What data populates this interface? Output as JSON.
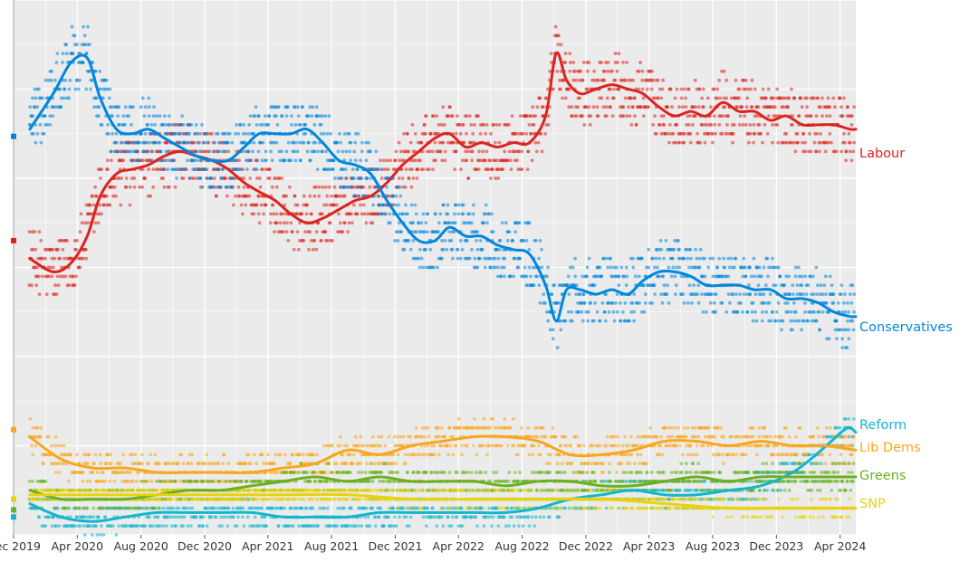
{
  "chart_data": {
    "type": "scatter",
    "title": "",
    "xlabel": "",
    "ylabel": "",
    "x_tick_labels": [
      "Dec 2019",
      "Apr 2020",
      "Aug 2020",
      "Dec 2020",
      "Apr 2021",
      "Aug 2021",
      "Dec 2021",
      "Apr 2022",
      "Aug 2022",
      "Dec 2022",
      "Apr 2023",
      "Aug 2023",
      "Dec 2023",
      "Apr 2024"
    ],
    "x_tick_dates": [
      "2019-12-01",
      "2020-04-01",
      "2020-08-01",
      "2020-12-01",
      "2021-04-01",
      "2021-08-01",
      "2021-12-01",
      "2022-04-01",
      "2022-08-01",
      "2022-12-01",
      "2023-04-01",
      "2023-08-01",
      "2023-12-01",
      "2024-04-01"
    ],
    "x_range": [
      "2019-12-01",
      "2024-05-01"
    ],
    "ylim": [
      0,
      60
    ],
    "grid": true,
    "election_result": {
      "date": "2019-12-12",
      "values": {
        "Conservatives": 44.7,
        "Labour": 33.0,
        "Lib Dems": 11.8,
        "Greens": 2.8,
        "Reform": 2.0,
        "SNP": 4.0
      }
    },
    "series": [
      {
        "name": "Labour",
        "color": "#DC241F",
        "spread": 3.5,
        "dates": [
          "2020-01-01",
          "2020-02-15",
          "2020-03-20",
          "2020-04-20",
          "2020-05-15",
          "2020-06-15",
          "2020-07-15",
          "2020-08-15",
          "2020-09-15",
          "2020-10-15",
          "2020-11-15",
          "2020-12-15",
          "2021-01-15",
          "2021-02-15",
          "2021-03-15",
          "2021-04-15",
          "2021-05-15",
          "2021-06-15",
          "2021-07-15",
          "2021-08-15",
          "2021-09-15",
          "2021-10-15",
          "2021-11-15",
          "2021-12-15",
          "2022-01-15",
          "2022-02-15",
          "2022-03-15",
          "2022-04-15",
          "2022-05-15",
          "2022-06-15",
          "2022-07-15",
          "2022-08-15",
          "2022-09-15",
          "2022-10-05",
          "2022-10-25",
          "2022-11-20",
          "2022-12-20",
          "2023-01-20",
          "2023-02-20",
          "2023-03-20",
          "2023-04-20",
          "2023-05-20",
          "2023-06-20",
          "2023-07-20",
          "2023-08-20",
          "2023-09-20",
          "2023-10-20",
          "2023-11-20",
          "2023-12-20",
          "2024-01-20",
          "2024-02-20",
          "2024-03-20",
          "2024-04-20",
          "2024-05-01"
        ],
        "values": [
          31.0,
          29.5,
          30.5,
          33.5,
          38.0,
          40.5,
          41.0,
          41.5,
          42.5,
          43.0,
          42.5,
          42.0,
          41.0,
          39.5,
          38.5,
          37.5,
          36.0,
          35.0,
          35.5,
          36.5,
          37.5,
          38.0,
          39.5,
          41.5,
          43.0,
          44.5,
          45.0,
          43.5,
          44.0,
          43.5,
          44.0,
          44.0,
          47.0,
          54.0,
          51.0,
          49.5,
          50.0,
          50.5,
          50.0,
          49.5,
          48.0,
          47.0,
          47.5,
          47.0,
          48.5,
          47.5,
          47.5,
          46.5,
          47.0,
          46.0,
          46.0,
          46.0,
          45.5,
          45.5
        ]
      },
      {
        "name": "Conservatives",
        "color": "#0087DC",
        "spread": 3.5,
        "dates": [
          "2020-01-01",
          "2020-02-15",
          "2020-03-20",
          "2020-04-20",
          "2020-05-15",
          "2020-06-15",
          "2020-07-15",
          "2020-08-15",
          "2020-09-15",
          "2020-10-15",
          "2020-11-15",
          "2020-12-15",
          "2021-01-15",
          "2021-02-15",
          "2021-03-15",
          "2021-04-15",
          "2021-05-15",
          "2021-06-15",
          "2021-07-15",
          "2021-08-15",
          "2021-09-15",
          "2021-10-15",
          "2021-11-15",
          "2021-12-15",
          "2022-01-15",
          "2022-02-15",
          "2022-03-15",
          "2022-04-15",
          "2022-05-15",
          "2022-06-15",
          "2022-07-15",
          "2022-08-15",
          "2022-09-15",
          "2022-10-05",
          "2022-10-25",
          "2022-11-20",
          "2022-12-20",
          "2023-01-20",
          "2023-02-20",
          "2023-03-20",
          "2023-04-20",
          "2023-05-20",
          "2023-06-20",
          "2023-07-20",
          "2023-08-20",
          "2023-09-20",
          "2023-10-20",
          "2023-11-20",
          "2023-12-20",
          "2024-01-20",
          "2024-02-20",
          "2024-03-20",
          "2024-04-20",
          "2024-05-01"
        ],
        "values": [
          45.5,
          49.5,
          53.0,
          53.5,
          49.0,
          45.5,
          45.0,
          45.5,
          44.5,
          43.5,
          42.5,
          42.0,
          42.0,
          43.5,
          45.0,
          45.0,
          45.0,
          45.5,
          44.0,
          42.0,
          41.5,
          40.5,
          37.5,
          35.0,
          33.0,
          33.0,
          34.5,
          33.5,
          33.5,
          32.5,
          32.0,
          31.5,
          28.0,
          24.0,
          27.5,
          27.5,
          27.0,
          27.5,
          27.0,
          28.5,
          29.5,
          29.5,
          29.0,
          28.0,
          28.0,
          28.0,
          27.5,
          27.5,
          26.5,
          26.5,
          26.0,
          25.0,
          24.5,
          24.5
        ]
      },
      {
        "name": "Reform",
        "color": "#12B6CF",
        "spread": 1.5,
        "dates": [
          "2020-01-01",
          "2020-03-01",
          "2020-05-01",
          "2020-07-01",
          "2020-09-01",
          "2020-11-01",
          "2021-01-01",
          "2021-03-01",
          "2021-05-01",
          "2021-07-01",
          "2021-09-01",
          "2021-11-01",
          "2022-01-01",
          "2022-03-01",
          "2022-05-01",
          "2022-07-01",
          "2022-09-01",
          "2022-11-01",
          "2023-01-01",
          "2023-03-01",
          "2023-05-01",
          "2023-07-01",
          "2023-09-01",
          "2023-11-01",
          "2024-01-01",
          "2024-02-15",
          "2024-03-15",
          "2024-04-15",
          "2024-05-01"
        ],
        "values": [
          3.5,
          2.0,
          1.5,
          2.0,
          2.5,
          2.5,
          2.5,
          2.5,
          2.0,
          2.0,
          2.0,
          2.5,
          2.5,
          2.5,
          2.5,
          2.5,
          3.0,
          4.0,
          4.5,
          5.0,
          4.5,
          4.5,
          5.0,
          5.5,
          7.0,
          9.0,
          10.5,
          12.0,
          11.5
        ]
      },
      {
        "name": "Lib Dems",
        "color": "#FAA61A",
        "spread": 1.8,
        "dates": [
          "2020-01-01",
          "2020-03-01",
          "2020-05-01",
          "2020-07-01",
          "2020-09-01",
          "2020-11-01",
          "2021-01-01",
          "2021-03-01",
          "2021-05-01",
          "2021-07-01",
          "2021-09-01",
          "2021-11-01",
          "2022-01-01",
          "2022-03-01",
          "2022-05-01",
          "2022-07-01",
          "2022-09-01",
          "2022-11-01",
          "2023-01-01",
          "2023-03-01",
          "2023-05-01",
          "2023-07-01",
          "2023-09-01",
          "2023-11-01",
          "2024-01-01",
          "2024-03-01",
          "2024-05-01"
        ],
        "values": [
          11.0,
          8.5,
          7.5,
          7.5,
          7.0,
          7.0,
          7.0,
          7.0,
          7.5,
          8.0,
          9.5,
          9.0,
          10.0,
          10.5,
          11.0,
          11.0,
          10.5,
          9.0,
          9.0,
          9.5,
          10.5,
          10.5,
          10.0,
          10.5,
          10.0,
          10.0,
          9.5
        ]
      },
      {
        "name": "Greens",
        "color": "#6AB023",
        "spread": 1.3,
        "dates": [
          "2020-01-01",
          "2020-03-01",
          "2020-05-01",
          "2020-07-01",
          "2020-09-01",
          "2020-11-01",
          "2021-01-01",
          "2021-03-01",
          "2021-05-01",
          "2021-07-01",
          "2021-09-01",
          "2021-11-01",
          "2022-01-01",
          "2022-03-01",
          "2022-05-01",
          "2022-07-01",
          "2022-09-01",
          "2022-11-01",
          "2023-01-01",
          "2023-03-01",
          "2023-05-01",
          "2023-07-01",
          "2023-09-01",
          "2023-11-01",
          "2024-01-01",
          "2024-03-01",
          "2024-05-01"
        ],
        "values": [
          5.0,
          4.0,
          4.0,
          4.0,
          4.5,
          5.0,
          5.0,
          5.5,
          6.0,
          6.5,
          6.0,
          6.5,
          6.0,
          6.0,
          6.0,
          5.5,
          6.0,
          6.0,
          5.5,
          5.5,
          6.0,
          6.5,
          6.0,
          6.5,
          6.5,
          6.5,
          6.5
        ]
      },
      {
        "name": "SNP",
        "color": "#E8D20F",
        "spread": 0.8,
        "dates": [
          "2020-01-01",
          "2020-05-01",
          "2020-09-01",
          "2021-01-01",
          "2021-05-01",
          "2021-09-01",
          "2022-01-01",
          "2022-05-01",
          "2022-09-01",
          "2023-01-01",
          "2023-05-01",
          "2023-09-01",
          "2024-01-01",
          "2024-05-01"
        ],
        "values": [
          4.5,
          4.5,
          4.5,
          4.5,
          4.5,
          4.5,
          4.0,
          4.0,
          4.0,
          4.0,
          3.5,
          3.0,
          3.0,
          3.0
        ]
      }
    ]
  }
}
